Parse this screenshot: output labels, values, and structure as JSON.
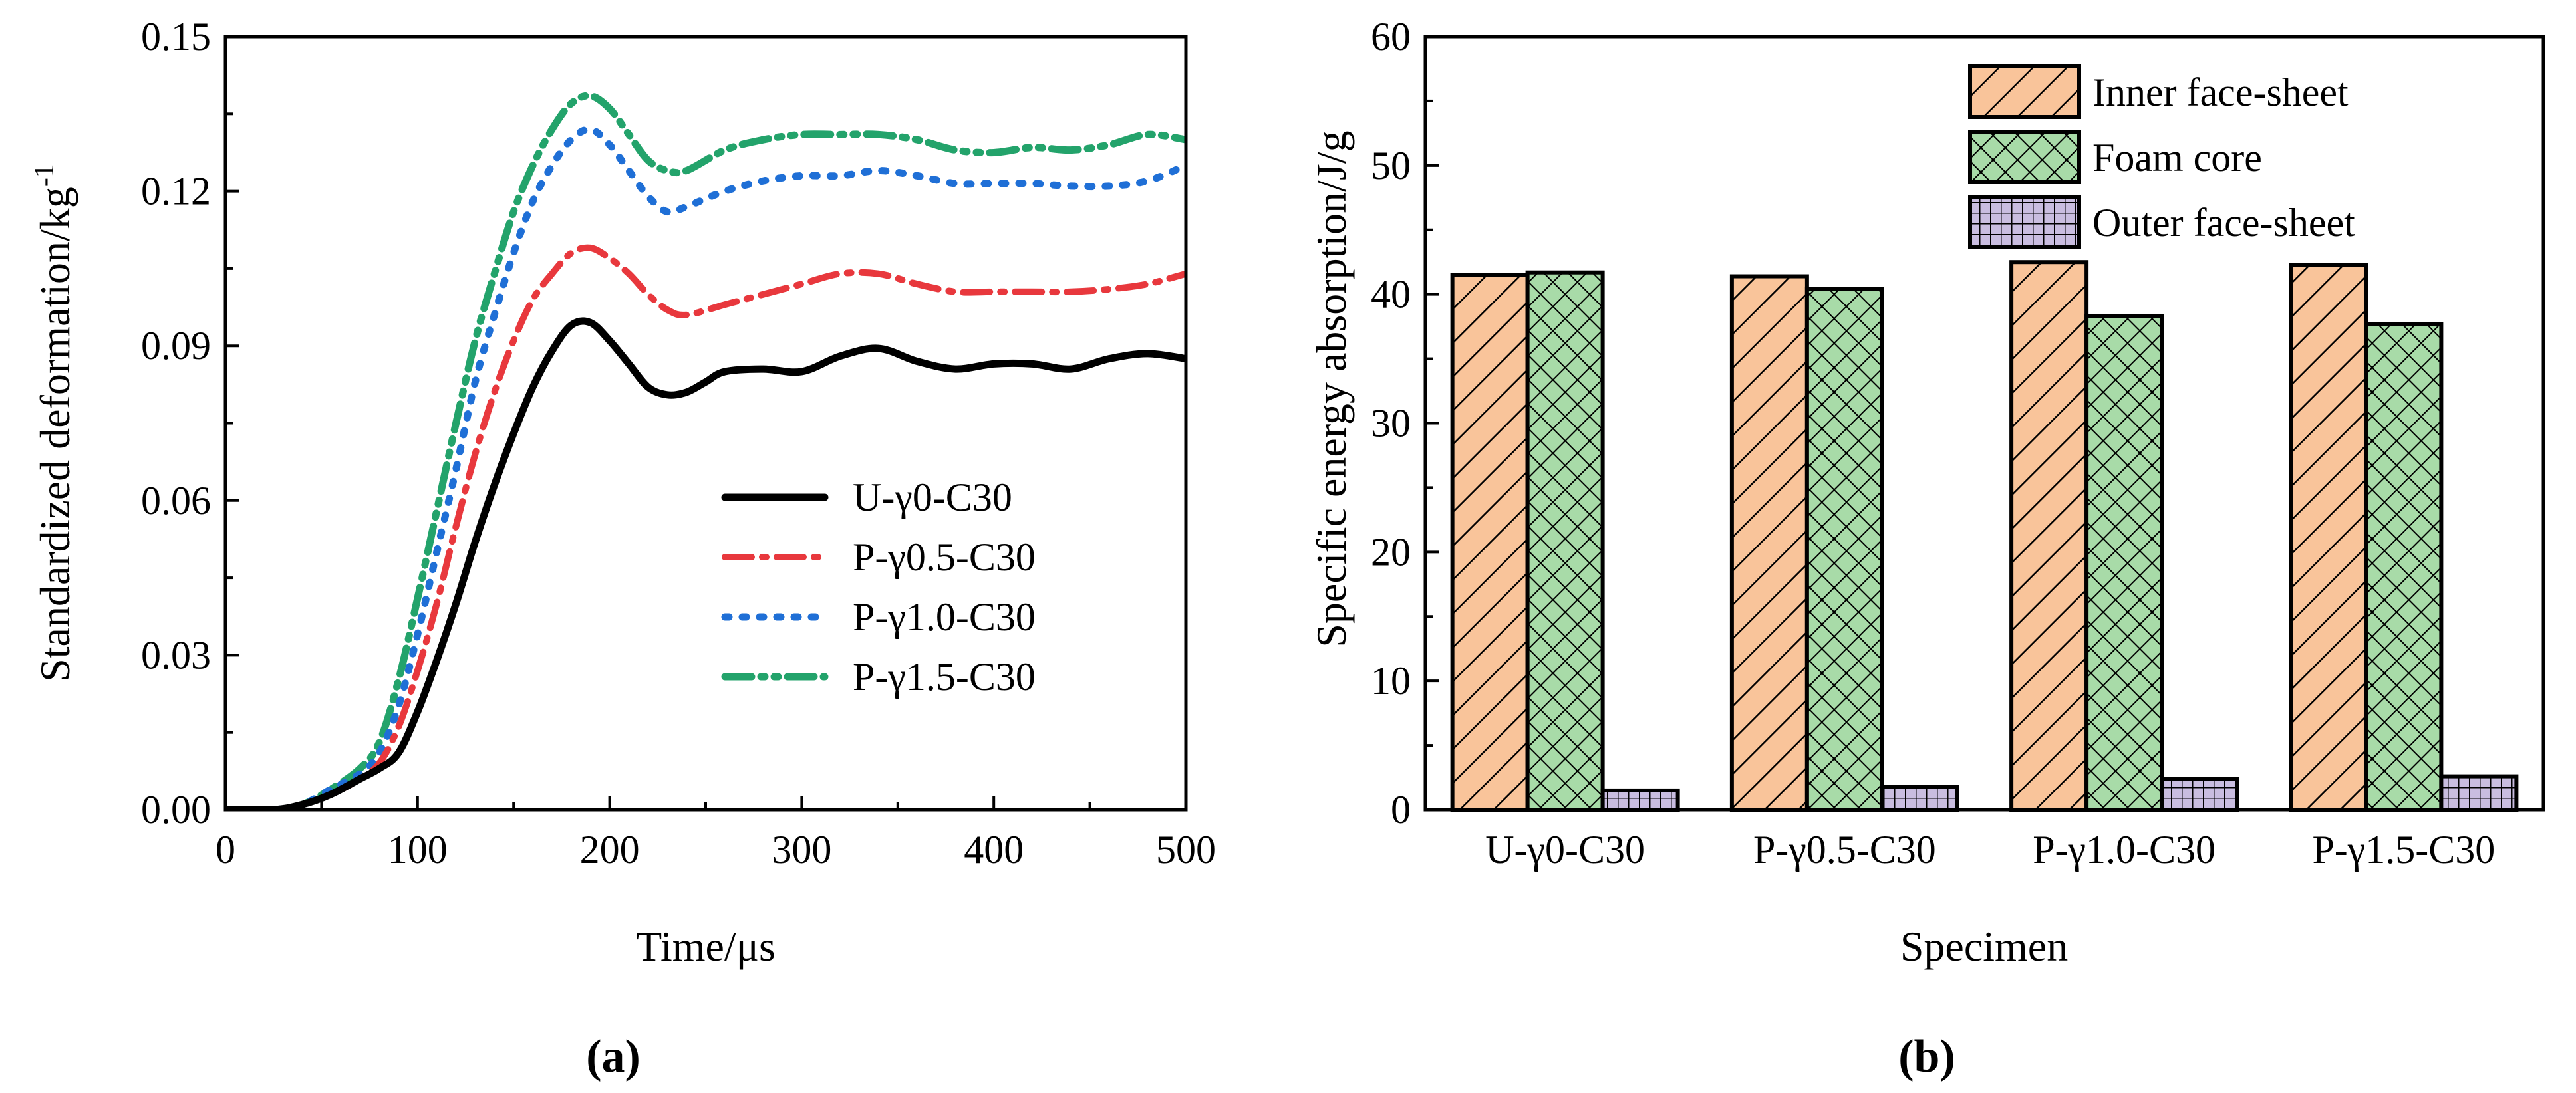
{
  "chart_data": [
    {
      "type": "line",
      "panel_label": "(a)",
      "xlabel": "Time/μs",
      "ylabel_base": "Standardized deformation/kg",
      "ylabel_sup": "-1",
      "xlim": [
        0,
        500
      ],
      "ylim": [
        0,
        0.15
      ],
      "xticks": [
        0,
        100,
        200,
        300,
        400,
        500
      ],
      "xtick_labels": [
        "0",
        "100",
        "200",
        "300",
        "400",
        "500"
      ],
      "yticks": [
        0,
        0.03,
        0.06,
        0.09,
        0.12,
        0.15
      ],
      "ytick_labels": [
        "0.00",
        "0.03",
        "0.06",
        "0.09",
        "0.12",
        "0.15"
      ],
      "legend_position": "center-right",
      "series": [
        {
          "name": "U-γ0-C30",
          "style": "solid",
          "color": "#000000",
          "x": [
            0,
            25,
            40,
            55,
            70,
            80,
            90,
            100,
            110,
            120,
            130,
            140,
            150,
            160,
            170,
            180,
            190,
            200,
            210,
            220,
            230,
            240,
            250,
            260,
            280,
            300,
            320,
            340,
            360,
            380,
            400,
            420,
            440,
            460,
            480,
            500
          ],
          "y": [
            0,
            0,
            0.001,
            0.003,
            0.006,
            0.008,
            0.011,
            0.019,
            0.029,
            0.04,
            0.052,
            0.063,
            0.073,
            0.082,
            0.089,
            0.094,
            0.0945,
            0.091,
            0.0865,
            0.082,
            0.0805,
            0.081,
            0.083,
            0.085,
            0.0855,
            0.085,
            0.088,
            0.0895,
            0.087,
            0.0855,
            0.0865,
            0.0865,
            0.0855,
            0.0875,
            0.0885,
            0.0875
          ]
        },
        {
          "name": "P-γ0.5-C30",
          "style": "dashdot",
          "color": "#e8383d",
          "x": [
            0,
            25,
            40,
            55,
            70,
            80,
            90,
            100,
            110,
            120,
            130,
            140,
            150,
            160,
            170,
            180,
            190,
            200,
            210,
            220,
            230,
            240,
            260,
            280,
            300,
            320,
            340,
            360,
            380,
            400,
            420,
            440,
            460,
            480,
            500
          ],
          "y": [
            0,
            0,
            0.001,
            0.003,
            0.006,
            0.009,
            0.016,
            0.027,
            0.04,
            0.055,
            0.069,
            0.081,
            0.091,
            0.099,
            0.104,
            0.108,
            0.109,
            0.107,
            0.104,
            0.1,
            0.097,
            0.096,
            0.098,
            0.1,
            0.102,
            0.104,
            0.104,
            0.102,
            0.1005,
            0.1005,
            0.1005,
            0.1005,
            0.101,
            0.102,
            0.104
          ]
        },
        {
          "name": "P-γ1.0-C30",
          "style": "dotted",
          "color": "#1f6fd6",
          "x": [
            0,
            25,
            40,
            55,
            70,
            80,
            90,
            100,
            110,
            120,
            130,
            140,
            150,
            160,
            170,
            180,
            190,
            200,
            210,
            220,
            230,
            240,
            260,
            280,
            300,
            320,
            340,
            360,
            380,
            400,
            420,
            440,
            460,
            480,
            500
          ],
          "y": [
            0,
            0,
            0.001,
            0.004,
            0.007,
            0.011,
            0.02,
            0.034,
            0.05,
            0.066,
            0.083,
            0.096,
            0.108,
            0.118,
            0.125,
            0.13,
            0.132,
            0.129,
            0.124,
            0.119,
            0.116,
            0.117,
            0.12,
            0.122,
            0.123,
            0.123,
            0.124,
            0.123,
            0.1215,
            0.1215,
            0.1215,
            0.121,
            0.121,
            0.122,
            0.125
          ]
        },
        {
          "name": "P-γ1.5-C30",
          "style": "dashdotdot",
          "color": "#23a36b",
          "x": [
            0,
            25,
            40,
            55,
            70,
            80,
            90,
            100,
            110,
            120,
            130,
            140,
            150,
            160,
            170,
            180,
            190,
            200,
            210,
            220,
            230,
            240,
            260,
            280,
            300,
            320,
            340,
            360,
            380,
            400,
            420,
            440,
            460,
            480,
            500
          ],
          "y": [
            0,
            0,
            0.001,
            0.004,
            0.008,
            0.013,
            0.025,
            0.041,
            0.058,
            0.075,
            0.091,
            0.104,
            0.116,
            0.125,
            0.132,
            0.137,
            0.1385,
            0.136,
            0.131,
            0.126,
            0.124,
            0.124,
            0.128,
            0.13,
            0.131,
            0.131,
            0.131,
            0.13,
            0.128,
            0.1275,
            0.1285,
            0.128,
            0.129,
            0.131,
            0.13
          ]
        }
      ]
    },
    {
      "type": "bar",
      "panel_label": "(b)",
      "xlabel": "Specimen",
      "ylabel": "Specific energy absorption/J/g",
      "ylim": [
        0,
        60
      ],
      "yticks": [
        0,
        10,
        20,
        30,
        40,
        50,
        60
      ],
      "ytick_labels": [
        "0",
        "10",
        "20",
        "30",
        "40",
        "50",
        "60"
      ],
      "categories": [
        "U-γ0-C30",
        "P-γ0.5-C30",
        "P-γ1.0-C30",
        "P-γ1.5-C30"
      ],
      "legend_position": "top-right",
      "series": [
        {
          "name": "Inner face-sheet",
          "color": "#f9c49a",
          "pattern": "diagonal-hatch",
          "values": [
            41.5,
            41.4,
            42.5,
            42.3
          ]
        },
        {
          "name": "Foam core",
          "color": "#a8dba8",
          "pattern": "cross-hatch",
          "values": [
            41.7,
            40.4,
            38.3,
            37.7
          ]
        },
        {
          "name": "Outer face-sheet",
          "color": "#c9bde0",
          "pattern": "grid",
          "values": [
            1.5,
            1.8,
            2.4,
            2.6
          ]
        }
      ]
    }
  ]
}
